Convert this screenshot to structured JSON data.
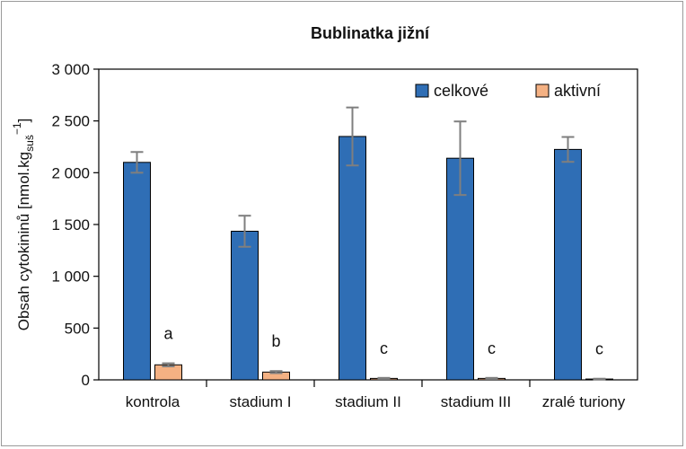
{
  "chart_data": {
    "type": "bar",
    "title": "Bublinatka jižní",
    "ylabel": {
      "main": "Obsah cytokininů [nmol.kg",
      "sub": "suš",
      "sup": "−1",
      "end": "]"
    },
    "xlabel": "",
    "ylim": [
      0,
      3000
    ],
    "yticks": [
      0,
      500,
      1000,
      1500,
      2000,
      2500,
      3000
    ],
    "ytick_labels": [
      "0",
      "500",
      "1 000",
      "1 500",
      "2 000",
      "2 500",
      "3 000"
    ],
    "categories": [
      "kontrola",
      "stadium I",
      "stadium II",
      "stadium III",
      "zralé turiony"
    ],
    "series": [
      {
        "name": "celkové",
        "color": "#2f6eb5",
        "values": [
          2100,
          1435,
          2350,
          2140,
          2225
        ],
        "error": [
          100,
          150,
          280,
          355,
          120
        ]
      },
      {
        "name": "aktivní",
        "color": "#f4b183",
        "values": [
          145,
          75,
          14,
          14,
          8
        ],
        "error": [
          15,
          10,
          5,
          5,
          3
        ]
      }
    ],
    "significance_labels": [
      "a",
      "b",
      "c",
      "c",
      "c"
    ],
    "legend_position": "top-right",
    "grid": false
  }
}
